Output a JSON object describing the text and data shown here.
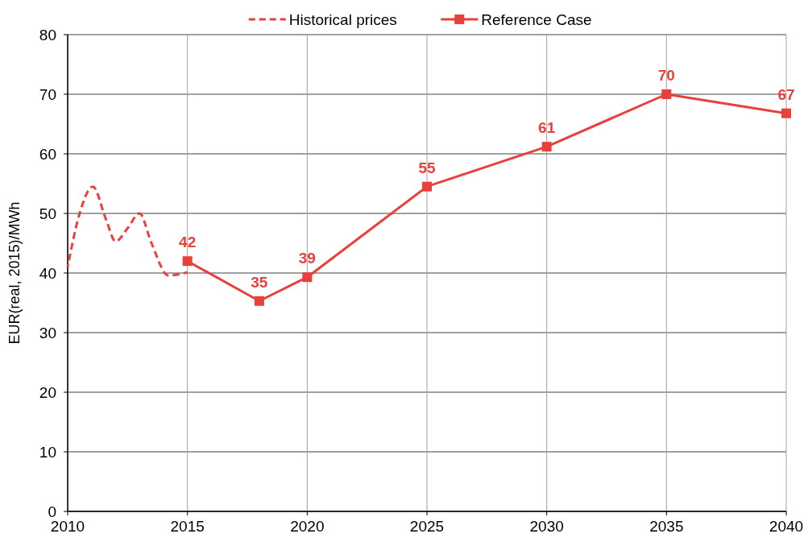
{
  "chart_data": {
    "type": "line",
    "ylabel": "EUR(real, 2015)/MWh",
    "xlim": [
      2010,
      2040
    ],
    "xticks": [
      2010,
      2015,
      2020,
      2025,
      2030,
      2035,
      2040
    ],
    "ylim": [
      0,
      80
    ],
    "yticks": [
      0,
      10,
      20,
      30,
      40,
      50,
      60,
      70,
      80
    ],
    "grid": true,
    "legend": "top",
    "series": [
      {
        "name": "Historical prices",
        "color": "#e8403a",
        "line_style": "dashed",
        "marker": "none",
        "x": [
          2010,
          2010.5,
          2011.05,
          2011.6,
          2012,
          2012.5,
          2013,
          2013.5,
          2014.2,
          2015
        ],
        "values": [
          41,
          50,
          54.5,
          49,
          45.3,
          47.5,
          50,
          45,
          39.6,
          40.1
        ]
      },
      {
        "name": "Reference Case",
        "color": "#e8403a",
        "line_style": "solid",
        "marker": "square",
        "x": [
          2015,
          2018,
          2020,
          2025,
          2030,
          2035,
          2040
        ],
        "values": [
          42,
          35.3,
          39.3,
          54.5,
          61.2,
          70,
          66.8
        ],
        "value_labels": [
          "42",
          "35",
          "39",
          "55",
          "61",
          "70",
          "67"
        ]
      }
    ]
  }
}
